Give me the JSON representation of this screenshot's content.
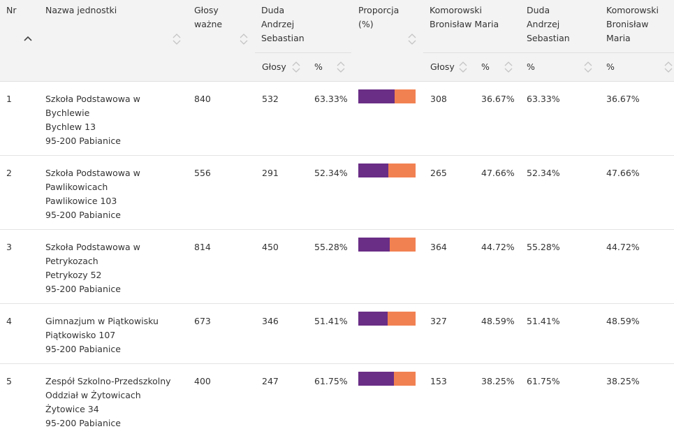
{
  "header": {
    "nr": "Nr",
    "nazwa": "Nazwa jednostki",
    "glosy_wazne": [
      "Głosy",
      "ważne"
    ],
    "duda": [
      "Duda",
      "Andrzej",
      "Sebastian"
    ],
    "proporcja": [
      "Proporcja",
      "(%)"
    ],
    "komorowski": [
      "Komorowski",
      "Bronisław Maria"
    ],
    "duda2": [
      "Duda",
      "Andrzej",
      "Sebastian"
    ],
    "komorowski2": [
      "Komorowski",
      "Bronisław",
      "Maria"
    ],
    "sub_glosy": "Głosy",
    "sub_pct": "%"
  },
  "colors": {
    "duda": "#6a2e86",
    "komorowski": "#f28152"
  },
  "rows": [
    {
      "nr": "1",
      "nazwa": [
        "Szkoła Podstawowa w",
        "Bychlewie",
        "Bychlew 13",
        "95-200 Pabianice"
      ],
      "glosy_wazne": "840",
      "duda_glosy": "532",
      "duda_pct": "63.33%",
      "proporcja": 63.33,
      "kom_glosy": "308",
      "kom_pct": "36.67%",
      "duda_pct2": "63.33%",
      "kom_pct2": "36.67%"
    },
    {
      "nr": "2",
      "nazwa": [
        "Szkoła Podstawowa w",
        "Pawlikowicach",
        "Pawlikowice 103",
        "95-200 Pabianice"
      ],
      "glosy_wazne": "556",
      "duda_glosy": "291",
      "duda_pct": "52.34%",
      "proporcja": 52.34,
      "kom_glosy": "265",
      "kom_pct": "47.66%",
      "duda_pct2": "52.34%",
      "kom_pct2": "47.66%"
    },
    {
      "nr": "3",
      "nazwa": [
        "Szkoła Podstawowa w",
        "Petrykozach",
        "Petrykozy 52",
        "95-200 Pabianice"
      ],
      "glosy_wazne": "814",
      "duda_glosy": "450",
      "duda_pct": "55.28%",
      "proporcja": 55.28,
      "kom_glosy": "364",
      "kom_pct": "44.72%",
      "duda_pct2": "55.28%",
      "kom_pct2": "44.72%"
    },
    {
      "nr": "4",
      "nazwa": [
        "Gimnazjum w Piątkowisku",
        "Piątkowisko 107",
        "95-200 Pabianice"
      ],
      "glosy_wazne": "673",
      "duda_glosy": "346",
      "duda_pct": "51.41%",
      "proporcja": 51.41,
      "kom_glosy": "327",
      "kom_pct": "48.59%",
      "duda_pct2": "51.41%",
      "kom_pct2": "48.59%"
    },
    {
      "nr": "5",
      "nazwa": [
        "Zespół Szkolno-Przedszkolny",
        "Oddział w Żytowicach",
        "Żytowice 34",
        "95-200 Pabianice"
      ],
      "glosy_wazne": "400",
      "duda_glosy": "247",
      "duda_pct": "61.75%",
      "proporcja": 61.75,
      "kom_glosy": "153",
      "kom_pct": "38.25%",
      "duda_pct2": "61.75%",
      "kom_pct2": "38.25%"
    }
  ]
}
